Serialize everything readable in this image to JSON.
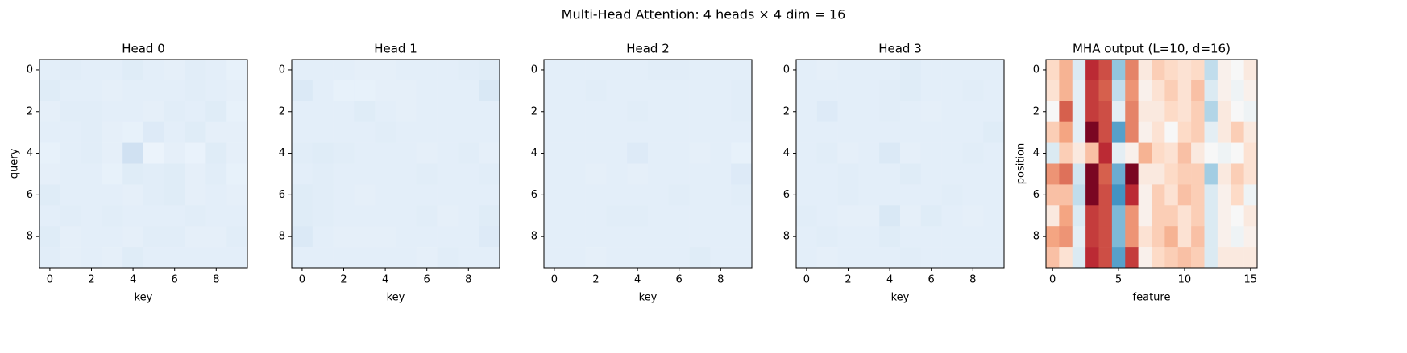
{
  "title": "Multi-Head Attention: 4 heads × 4 dim = 16",
  "chart_data": [
    {
      "type": "heatmap",
      "title": "Head 0",
      "xlabel": "key",
      "ylabel": "query",
      "cmap": "Blues",
      "clim": [
        0,
        1
      ],
      "xlim": [
        -0.5,
        9.5
      ],
      "ylim": [
        9.5,
        -0.5
      ],
      "xticks": [
        0,
        2,
        4,
        6,
        8
      ],
      "yticks": [
        0,
        2,
        4,
        6,
        8
      ],
      "values": [
        [
          0.1,
          0.11,
          0.1,
          0.1,
          0.12,
          0.1,
          0.09,
          0.11,
          0.1,
          0.08
        ],
        [
          0.12,
          0.1,
          0.1,
          0.09,
          0.1,
          0.1,
          0.1,
          0.11,
          0.1,
          0.09
        ],
        [
          0.09,
          0.11,
          0.11,
          0.1,
          0.1,
          0.09,
          0.11,
          0.1,
          0.12,
          0.08
        ],
        [
          0.1,
          0.1,
          0.11,
          0.09,
          0.08,
          0.13,
          0.1,
          0.12,
          0.09,
          0.09
        ],
        [
          0.08,
          0.1,
          0.11,
          0.09,
          0.2,
          0.06,
          0.09,
          0.07,
          0.12,
          0.09
        ],
        [
          0.09,
          0.1,
          0.1,
          0.08,
          0.12,
          0.11,
          0.12,
          0.09,
          0.11,
          0.08
        ],
        [
          0.12,
          0.1,
          0.1,
          0.1,
          0.09,
          0.11,
          0.12,
          0.09,
          0.1,
          0.09
        ],
        [
          0.1,
          0.11,
          0.1,
          0.11,
          0.1,
          0.1,
          0.1,
          0.11,
          0.1,
          0.1
        ],
        [
          0.12,
          0.09,
          0.1,
          0.1,
          0.09,
          0.11,
          0.11,
          0.09,
          0.09,
          0.11
        ],
        [
          0.11,
          0.09,
          0.1,
          0.09,
          0.12,
          0.1,
          0.1,
          0.1,
          0.1,
          0.1
        ]
      ]
    },
    {
      "type": "heatmap",
      "title": "Head 1",
      "xlabel": "key",
      "cmap": "Blues",
      "clim": [
        0,
        1
      ],
      "xlim": [
        -0.5,
        9.5
      ],
      "ylim": [
        9.5,
        -0.5
      ],
      "xticks": [
        0,
        2,
        4,
        6,
        8
      ],
      "yticks": [
        0,
        2,
        4,
        6,
        8
      ],
      "values": [
        [
          0.1,
          0.1,
          0.1,
          0.09,
          0.09,
          0.1,
          0.1,
          0.1,
          0.11,
          0.12
        ],
        [
          0.14,
          0.1,
          0.08,
          0.08,
          0.09,
          0.09,
          0.1,
          0.1,
          0.1,
          0.15
        ],
        [
          0.1,
          0.1,
          0.1,
          0.12,
          0.1,
          0.09,
          0.1,
          0.1,
          0.1,
          0.1
        ],
        [
          0.1,
          0.1,
          0.1,
          0.1,
          0.11,
          0.1,
          0.1,
          0.1,
          0.1,
          0.1
        ],
        [
          0.11,
          0.12,
          0.11,
          0.1,
          0.1,
          0.1,
          0.09,
          0.1,
          0.11,
          0.09
        ],
        [
          0.1,
          0.11,
          0.1,
          0.1,
          0.1,
          0.1,
          0.11,
          0.1,
          0.1,
          0.11
        ],
        [
          0.12,
          0.11,
          0.1,
          0.09,
          0.1,
          0.1,
          0.1,
          0.1,
          0.1,
          0.1
        ],
        [
          0.12,
          0.11,
          0.1,
          0.1,
          0.1,
          0.1,
          0.11,
          0.09,
          0.1,
          0.12
        ],
        [
          0.14,
          0.1,
          0.09,
          0.09,
          0.09,
          0.1,
          0.1,
          0.1,
          0.1,
          0.13
        ],
        [
          0.1,
          0.1,
          0.1,
          0.1,
          0.1,
          0.1,
          0.09,
          0.11,
          0.1,
          0.1
        ]
      ]
    },
    {
      "type": "heatmap",
      "title": "Head 2",
      "xlabel": "key",
      "cmap": "Blues",
      "clim": [
        0,
        1
      ],
      "xlim": [
        -0.5,
        9.5
      ],
      "ylim": [
        9.5,
        -0.5
      ],
      "xticks": [
        0,
        2,
        4,
        6,
        8
      ],
      "yticks": [
        0,
        2,
        4,
        6,
        8
      ],
      "values": [
        [
          0.1,
          0.1,
          0.1,
          0.1,
          0.1,
          0.11,
          0.11,
          0.1,
          0.1,
          0.1
        ],
        [
          0.1,
          0.1,
          0.11,
          0.1,
          0.1,
          0.1,
          0.1,
          0.1,
          0.1,
          0.11
        ],
        [
          0.1,
          0.1,
          0.1,
          0.1,
          0.11,
          0.1,
          0.1,
          0.1,
          0.1,
          0.11
        ],
        [
          0.1,
          0.1,
          0.1,
          0.1,
          0.1,
          0.1,
          0.1,
          0.1,
          0.1,
          0.1
        ],
        [
          0.1,
          0.1,
          0.1,
          0.1,
          0.13,
          0.1,
          0.1,
          0.09,
          0.1,
          0.08
        ],
        [
          0.1,
          0.1,
          0.09,
          0.1,
          0.09,
          0.1,
          0.1,
          0.1,
          0.1,
          0.13
        ],
        [
          0.1,
          0.1,
          0.1,
          0.1,
          0.1,
          0.1,
          0.11,
          0.1,
          0.1,
          0.11
        ],
        [
          0.1,
          0.1,
          0.1,
          0.11,
          0.11,
          0.1,
          0.1,
          0.1,
          0.1,
          0.1
        ],
        [
          0.1,
          0.1,
          0.1,
          0.1,
          0.1,
          0.1,
          0.1,
          0.1,
          0.1,
          0.1
        ],
        [
          0.1,
          0.1,
          0.09,
          0.1,
          0.1,
          0.1,
          0.1,
          0.12,
          0.1,
          0.1
        ]
      ]
    },
    {
      "type": "heatmap",
      "title": "Head 3",
      "xlabel": "key",
      "cmap": "Blues",
      "clim": [
        0,
        1
      ],
      "xlim": [
        -0.5,
        9.5
      ],
      "ylim": [
        9.5,
        -0.5
      ],
      "xticks": [
        0,
        2,
        4,
        6,
        8
      ],
      "yticks": [
        0,
        2,
        4,
        6,
        8
      ],
      "values": [
        [
          0.1,
          0.09,
          0.1,
          0.1,
          0.1,
          0.12,
          0.1,
          0.1,
          0.1,
          0.1
        ],
        [
          0.1,
          0.1,
          0.1,
          0.1,
          0.11,
          0.12,
          0.1,
          0.1,
          0.11,
          0.1
        ],
        [
          0.1,
          0.13,
          0.1,
          0.1,
          0.11,
          0.1,
          0.09,
          0.1,
          0.1,
          0.1
        ],
        [
          0.1,
          0.1,
          0.1,
          0.1,
          0.1,
          0.1,
          0.1,
          0.1,
          0.1,
          0.12
        ],
        [
          0.1,
          0.11,
          0.09,
          0.1,
          0.14,
          0.09,
          0.1,
          0.1,
          0.11,
          0.1
        ],
        [
          0.1,
          0.1,
          0.11,
          0.1,
          0.1,
          0.12,
          0.1,
          0.1,
          0.1,
          0.1
        ],
        [
          0.1,
          0.1,
          0.11,
          0.1,
          0.1,
          0.1,
          0.1,
          0.11,
          0.1,
          0.1
        ],
        [
          0.11,
          0.1,
          0.09,
          0.09,
          0.15,
          0.09,
          0.12,
          0.1,
          0.09,
          0.1
        ],
        [
          0.1,
          0.11,
          0.1,
          0.1,
          0.12,
          0.1,
          0.1,
          0.1,
          0.1,
          0.1
        ],
        [
          0.1,
          0.09,
          0.1,
          0.1,
          0.1,
          0.11,
          0.1,
          0.1,
          0.1,
          0.1
        ]
      ]
    },
    {
      "type": "heatmap",
      "title": "MHA output (L=10, d=16)",
      "xlabel": "feature",
      "ylabel": "position",
      "cmap": "RdBu_r",
      "clim": [
        -2,
        2
      ],
      "xlim": [
        -0.5,
        15.5
      ],
      "ylim": [
        9.5,
        -0.5
      ],
      "xticks": [
        0,
        5,
        10,
        15
      ],
      "yticks": [
        0,
        2,
        4,
        6,
        8
      ],
      "values": [
        [
          0.4,
          0.7,
          -0.3,
          1.5,
          1.3,
          -0.8,
          1.0,
          0.2,
          0.5,
          0.4,
          0.3,
          0.4,
          -0.5,
          0.1,
          0.0,
          0.2
        ],
        [
          0.3,
          0.7,
          -0.2,
          1.4,
          1.2,
          -0.5,
          0.9,
          0.1,
          0.3,
          0.5,
          0.3,
          0.6,
          -0.3,
          0.1,
          -0.1,
          0.1
        ],
        [
          0.0,
          1.2,
          -0.2,
          1.4,
          1.3,
          -0.2,
          1.0,
          0.2,
          0.2,
          0.4,
          0.3,
          0.5,
          -0.6,
          0.2,
          0.0,
          -0.1
        ],
        [
          0.5,
          0.8,
          -0.2,
          1.9,
          1.3,
          -1.1,
          1.0,
          0.1,
          0.3,
          0.0,
          0.4,
          0.5,
          -0.2,
          0.2,
          0.5,
          0.2
        ],
        [
          -0.3,
          0.5,
          0.2,
          0.6,
          1.5,
          -0.2,
          0.1,
          0.7,
          0.4,
          0.3,
          0.6,
          0.2,
          0.0,
          -0.1,
          0.0,
          0.3
        ],
        [
          0.9,
          1.1,
          -0.4,
          1.9,
          1.2,
          -1.0,
          1.9,
          0.2,
          0.2,
          0.4,
          0.5,
          0.5,
          -0.7,
          0.2,
          0.5,
          0.3
        ],
        [
          0.6,
          0.6,
          -0.5,
          1.9,
          1.3,
          -1.2,
          1.5,
          0.1,
          0.5,
          0.3,
          0.6,
          0.5,
          -0.3,
          0.1,
          0.4,
          -0.1
        ],
        [
          0.2,
          0.8,
          -0.3,
          1.4,
          1.3,
          -0.9,
          0.9,
          0.1,
          0.5,
          0.5,
          0.3,
          0.5,
          -0.3,
          0.1,
          0.0,
          0.2
        ],
        [
          0.8,
          0.9,
          -0.2,
          1.4,
          1.3,
          -0.9,
          0.9,
          0.3,
          0.5,
          0.7,
          0.3,
          0.6,
          -0.3,
          0.1,
          -0.1,
          0.1
        ],
        [
          0.6,
          0.3,
          -0.3,
          1.5,
          1.3,
          -1.1,
          1.4,
          0.1,
          0.4,
          0.5,
          0.6,
          0.5,
          -0.3,
          0.2,
          0.2,
          0.2
        ]
      ]
    }
  ]
}
